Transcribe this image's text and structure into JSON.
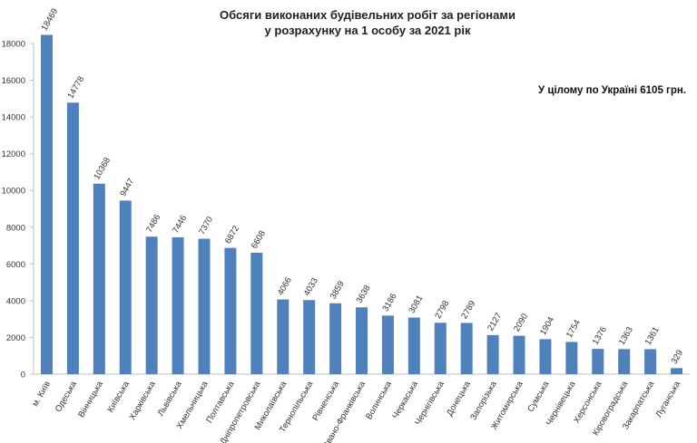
{
  "chart_data": {
    "type": "bar",
    "title_lines": [
      "Обсяги виконаних будівельних робіт за регіонами",
      "у розрахунку на 1 особу  за 2021 рік"
    ],
    "annotation": "У цілому по Україні 6105 грн.",
    "ylim": [
      0,
      18000
    ],
    "yticks": [
      0,
      2000,
      4000,
      6000,
      8000,
      10000,
      12000,
      14000,
      16000,
      18000
    ],
    "grid": false,
    "bar_color": "#4f81bd",
    "categories": [
      "м. Київ",
      "Одеська",
      "Вінницька",
      "Київська",
      "Харківська",
      "Львівська",
      "Хмельницька",
      "Полтавська",
      "Дніпропетровська",
      "Миколаївська",
      "Тернопільська",
      "Рівненська",
      "Івано-Франківська",
      "Волинська",
      "Черкаська",
      "Чернігівська",
      "Донецька",
      "Запорізька",
      "Житомирська",
      "Сумська",
      "Чернівецька",
      "Херсонська",
      "Кіровоградська",
      "Закарпатська",
      "Луганська"
    ],
    "values": [
      18469,
      14778,
      10368,
      9447,
      7486,
      7446,
      7370,
      6872,
      6608,
      4066,
      4033,
      3859,
      3638,
      3186,
      3081,
      2798,
      2789,
      2127,
      2090,
      1904,
      1754,
      1376,
      1363,
      1361,
      329
    ]
  }
}
